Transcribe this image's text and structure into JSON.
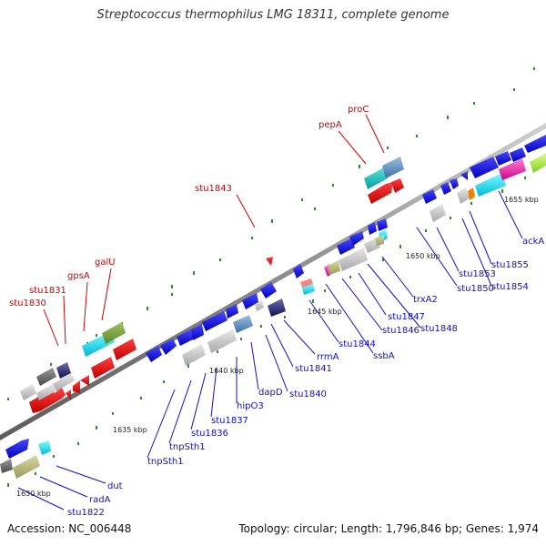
{
  "title": "Streptococcus thermophilus LMG 18311, complete genome",
  "footer": {
    "accession": "Accession: NC_006448",
    "topology": "Topology: circular; Length: 1,796,846 bp; Genes: 1,974"
  },
  "scale_labels": [
    "1630 kbp",
    "1635 kbp",
    "1640 kbp",
    "1645 kbp",
    "1650 kbp",
    "1655 kbp"
  ],
  "labels_red": [
    "stu1830",
    "stu1831",
    "gpsA",
    "galU",
    "stu1843",
    "pepA",
    "proC"
  ],
  "labels_blue": [
    "stu1822",
    "radA",
    "dut",
    "tnpSth1",
    "tnpSth1",
    "stu1836",
    "stu1837",
    "hipO3",
    "dapD",
    "stu1840",
    "stu1841",
    "rrmA",
    "stu1844",
    "ssbA",
    "stu1846",
    "stu1847",
    "stu1848",
    "trxA2",
    "stu1850",
    "stu1853",
    "stu1854",
    "stu1855",
    "ackA"
  ],
  "colors": {
    "forward": "#e00000",
    "reverse": "#0000dd",
    "backbone": "#888888",
    "tick": "#228b22"
  }
}
